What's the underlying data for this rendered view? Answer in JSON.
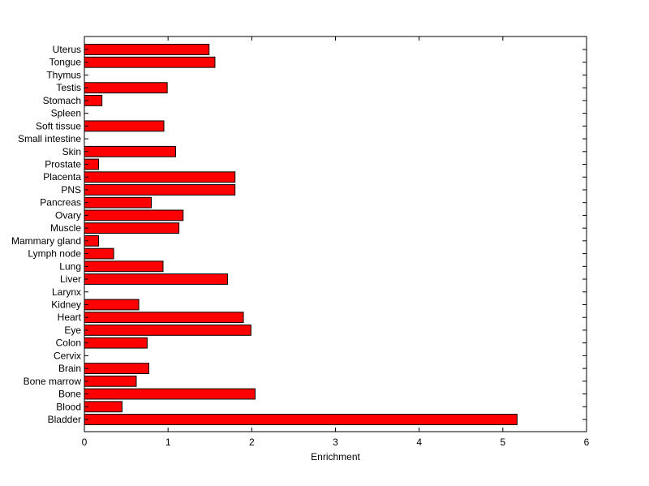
{
  "chart_data": {
    "type": "bar",
    "orientation": "horizontal",
    "title": "",
    "xlabel": "Enrichment",
    "ylabel": "",
    "xlim": [
      0,
      6
    ],
    "xticks": [
      "0",
      "1",
      "2",
      "3",
      "4",
      "5",
      "6"
    ],
    "grid": false,
    "bar_color": "#ff0000",
    "edge_color": "#000000",
    "categories": [
      "Bladder",
      "Blood",
      "Bone",
      "Bone marrow",
      "Brain",
      "Cervix",
      "Colon",
      "Eye",
      "Heart",
      "Kidney",
      "Larynx",
      "Liver",
      "Lung",
      "Lymph node",
      "Mammary gland",
      "Muscle",
      "Ovary",
      "Pancreas",
      "PNS",
      "Placenta",
      "Prostate",
      "Skin",
      "Small intestine",
      "Soft tissue",
      "Spleen",
      "Stomach",
      "Testis",
      "Thymus",
      "Tongue",
      "Uterus"
    ],
    "values": [
      5.17,
      0.45,
      2.04,
      0.62,
      0.77,
      0,
      0.75,
      1.99,
      1.9,
      0.65,
      0,
      1.71,
      0.94,
      0.35,
      0.17,
      1.13,
      1.18,
      0.8,
      1.8,
      1.8,
      0.17,
      1.09,
      0,
      0.95,
      0,
      0.21,
      0.99,
      0,
      1.56,
      1.49
    ]
  }
}
